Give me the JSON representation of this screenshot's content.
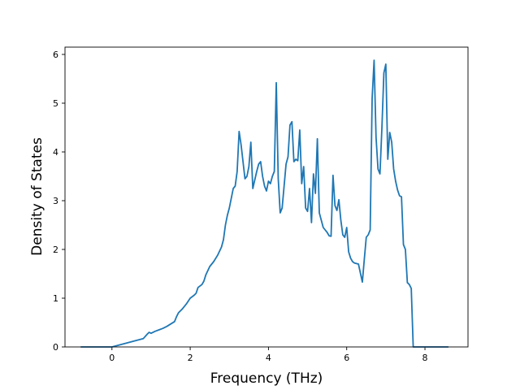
{
  "chart_data": {
    "type": "line",
    "title": "",
    "xlabel": "Frequency (THz)",
    "ylabel": "Density of States",
    "xlim": [
      -1.2,
      9.1
    ],
    "ylim": [
      0,
      6.15
    ],
    "xticks": [
      0,
      2,
      4,
      6,
      8
    ],
    "yticks": [
      0,
      1,
      2,
      3,
      4,
      5,
      6
    ],
    "grid": false,
    "line_color": "#1f77b4",
    "series": [
      {
        "x": [
          -0.8,
          0.0,
          0.8,
          0.9,
          0.95,
          1.0,
          1.1,
          1.2,
          1.3,
          1.4,
          1.5,
          1.6,
          1.65,
          1.7,
          1.8,
          1.9,
          2.0,
          2.1,
          2.15,
          2.2,
          2.3,
          2.35,
          2.4,
          2.5,
          2.6,
          2.7,
          2.8,
          2.85,
          2.9,
          2.95,
          3.0,
          3.1,
          3.15,
          3.2,
          3.25,
          3.3,
          3.4,
          3.45,
          3.5,
          3.55,
          3.6,
          3.7,
          3.75,
          3.8,
          3.85,
          3.9,
          3.95,
          4.0,
          4.05,
          4.1,
          4.15,
          4.2,
          4.25,
          4.3,
          4.35,
          4.4,
          4.45,
          4.5,
          4.55,
          4.6,
          4.65,
          4.7,
          4.75,
          4.8,
          4.85,
          4.9,
          4.95,
          5.0,
          5.05,
          5.1,
          5.15,
          5.2,
          5.25,
          5.3,
          5.35,
          5.4,
          5.45,
          5.5,
          5.55,
          5.6,
          5.65,
          5.7,
          5.75,
          5.8,
          5.85,
          5.9,
          5.95,
          6.0,
          6.05,
          6.1,
          6.15,
          6.2,
          6.3,
          6.4,
          6.45,
          6.5,
          6.55,
          6.6,
          6.65,
          6.7,
          6.75,
          6.8,
          6.85,
          6.9,
          6.95,
          7.0,
          7.05,
          7.1,
          7.15,
          7.2,
          7.25,
          7.3,
          7.35,
          7.4,
          7.45,
          7.5,
          7.55,
          7.6,
          7.65,
          7.7,
          7.75,
          7.8,
          7.85,
          8.6
        ],
        "y": [
          0,
          0,
          0.17,
          0.26,
          0.3,
          0.28,
          0.32,
          0.35,
          0.38,
          0.42,
          0.47,
          0.52,
          0.62,
          0.7,
          0.78,
          0.88,
          1.0,
          1.06,
          1.1,
          1.22,
          1.28,
          1.35,
          1.48,
          1.65,
          1.75,
          1.88,
          2.05,
          2.2,
          2.5,
          2.7,
          2.85,
          3.25,
          3.3,
          3.6,
          4.42,
          4.15,
          3.45,
          3.5,
          3.7,
          4.2,
          3.25,
          3.6,
          3.75,
          3.8,
          3.5,
          3.3,
          3.2,
          3.4,
          3.35,
          3.5,
          3.6,
          5.42,
          3.45,
          2.75,
          2.85,
          3.3,
          3.75,
          3.9,
          4.55,
          4.62,
          3.8,
          3.85,
          3.82,
          4.45,
          3.35,
          3.7,
          2.85,
          2.78,
          3.25,
          2.55,
          3.55,
          3.15,
          4.27,
          2.75,
          2.6,
          2.45,
          2.4,
          2.35,
          2.28,
          2.27,
          3.52,
          2.9,
          2.8,
          3.02,
          2.6,
          2.3,
          2.25,
          2.45,
          1.95,
          1.82,
          1.75,
          1.72,
          1.7,
          1.33,
          1.8,
          2.25,
          2.3,
          2.4,
          5.1,
          5.88,
          4.3,
          3.65,
          3.55,
          4.5,
          5.62,
          5.8,
          3.85,
          4.4,
          4.2,
          3.65,
          3.4,
          3.22,
          3.1,
          3.08,
          2.1,
          2.0,
          1.32,
          1.28,
          1.2,
          0.0,
          0.0,
          0.0,
          0.0,
          0
        ]
      }
    ]
  }
}
